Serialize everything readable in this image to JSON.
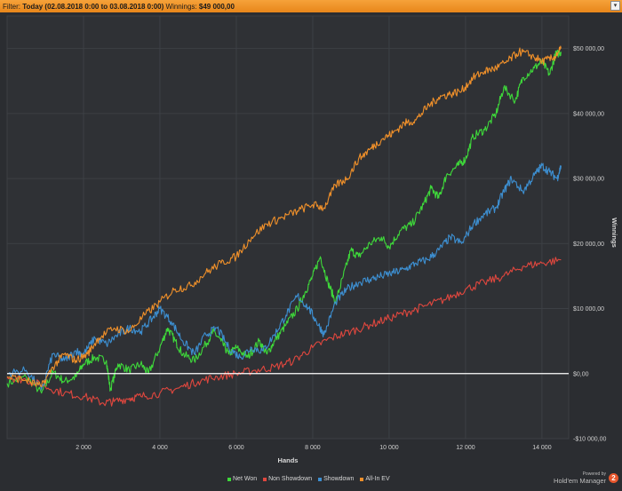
{
  "filter": {
    "label": "Filter:",
    "range": "Today (02.08.2018 0:00 to 03.08.2018 0:00)",
    "winnings_label": "Winnings:",
    "winnings_value": "$49 000,00"
  },
  "powered_by": {
    "line1": "Powered by",
    "line2": "Hold'em Manager",
    "logo": "2"
  },
  "chart_data": {
    "type": "line",
    "xlabel": "Hands",
    "ylabel": "Winnings",
    "xlim": [
      0,
      14700
    ],
    "ylim": [
      -10000,
      55000
    ],
    "xticks": [
      2000,
      4000,
      6000,
      8000,
      10000,
      12000,
      14000
    ],
    "xtick_labels": [
      "2 000",
      "4 000",
      "6 000",
      "8 000",
      "10 000",
      "12 000",
      "14 000"
    ],
    "yticks": [
      -10000,
      0,
      10000,
      20000,
      30000,
      40000,
      50000
    ],
    "ytick_labels": [
      "-$10 000,00",
      "$0,00",
      "$10 000,00",
      "$20 000,00",
      "$30 000,00",
      "$40 000,00",
      "$50 000,00"
    ],
    "zero_line": true,
    "grid": true,
    "legend_position": "bottom",
    "series": [
      {
        "name": "Net Won",
        "color": "#3ed83a",
        "x": [
          0,
          500,
          900,
          1200,
          1500,
          1800,
          2000,
          2300,
          2600,
          2700,
          2900,
          3200,
          3500,
          3700,
          4000,
          4200,
          4400,
          4600,
          4900,
          5200,
          5400,
          5600,
          5800,
          6000,
          6300,
          6600,
          6800,
          7000,
          7300,
          7600,
          7800,
          8000,
          8200,
          8400,
          8600,
          8800,
          9000,
          9200,
          9500,
          9800,
          10000,
          10300,
          10600,
          10900,
          11100,
          11300,
          11500,
          11800,
          12000,
          12200,
          12500,
          12800,
          13000,
          13300,
          13500,
          13800,
          14000,
          14200,
          14350,
          14500
        ],
        "y": [
          -1500,
          -500,
          -3000,
          200,
          -1200,
          -500,
          1500,
          2500,
          2000,
          -2500,
          1500,
          500,
          1500,
          0,
          4000,
          7000,
          5000,
          3000,
          2000,
          4500,
          6500,
          5000,
          3000,
          4000,
          2500,
          5000,
          3000,
          5000,
          7500,
          10000,
          12500,
          15000,
          18000,
          14000,
          11000,
          15000,
          19000,
          18000,
          20000,
          21000,
          19500,
          22000,
          23000,
          26000,
          28500,
          27000,
          30500,
          32000,
          33000,
          36500,
          37500,
          40000,
          44000,
          42000,
          45500,
          47000,
          48000,
          46000,
          49000,
          49500
        ]
      },
      {
        "name": "Non Showdown",
        "color": "#e0473e",
        "x": [
          0,
          500,
          1000,
          1500,
          2000,
          2500,
          2800,
          3200,
          3500,
          4000,
          4500,
          5000,
          5500,
          6000,
          6500,
          7000,
          7500,
          8000,
          8500,
          9000,
          9500,
          10000,
          10500,
          11000,
          11500,
          12000,
          12500,
          13000,
          13500,
          14000,
          14500
        ],
        "y": [
          -500,
          -1000,
          -2000,
          -3000,
          -3500,
          -4500,
          -4300,
          -3800,
          -3500,
          -3000,
          -2200,
          -1200,
          -500,
          0,
          500,
          1000,
          2000,
          4000,
          5500,
          6500,
          7500,
          8500,
          9500,
          10500,
          11500,
          13000,
          14000,
          15000,
          16500,
          17000,
          17500
        ]
      },
      {
        "name": "Showdown",
        "color": "#3d8fd1",
        "x": [
          0,
          500,
          900,
          1200,
          1500,
          1800,
          2000,
          2300,
          2600,
          2900,
          3200,
          3500,
          3800,
          4000,
          4300,
          4600,
          4900,
          5200,
          5500,
          5800,
          6100,
          6400,
          6700,
          7000,
          7300,
          7600,
          7900,
          8100,
          8300,
          8600,
          8900,
          9200,
          9500,
          9800,
          10100,
          10400,
          10700,
          11000,
          11300,
          11600,
          11900,
          12200,
          12500,
          12800,
          13000,
          13200,
          13500,
          13800,
          14000,
          14200,
          14400,
          14500
        ],
        "y": [
          0,
          500,
          -2500,
          3000,
          2000,
          3500,
          3000,
          5500,
          4500,
          6000,
          7000,
          6500,
          8500,
          10000,
          8000,
          5000,
          3000,
          6000,
          7000,
          4000,
          2500,
          4000,
          3500,
          6000,
          9000,
          12000,
          10000,
          8000,
          6000,
          11000,
          13000,
          14000,
          14500,
          15000,
          15500,
          16000,
          17000,
          17500,
          19000,
          21000,
          20000,
          23000,
          24500,
          25500,
          28000,
          30000,
          28000,
          30500,
          32000,
          31000,
          30000,
          32000
        ]
      },
      {
        "name": "All-In EV",
        "color": "#f0902a",
        "x": [
          0,
          500,
          900,
          1200,
          1500,
          1800,
          2100,
          2400,
          2800,
          3200,
          3600,
          4000,
          4400,
          4800,
          5200,
          5600,
          6000,
          6400,
          6800,
          7200,
          7600,
          8000,
          8300,
          8600,
          8900,
          9200,
          9500,
          9800,
          10100,
          10400,
          10700,
          11000,
          11300,
          11600,
          11900,
          12200,
          12500,
          12800,
          13100,
          13400,
          13700,
          14000,
          14300,
          14500
        ],
        "y": [
          -500,
          -1000,
          -2000,
          1000,
          3000,
          2000,
          3000,
          5500,
          7000,
          6500,
          9000,
          11000,
          13000,
          13500,
          15500,
          17000,
          18000,
          21000,
          23000,
          24000,
          25000,
          26000,
          25500,
          29000,
          30000,
          33000,
          34500,
          36000,
          37000,
          38500,
          39000,
          41000,
          42500,
          43000,
          43500,
          45500,
          46500,
          47000,
          48000,
          49500,
          49000,
          48000,
          48500,
          50000
        ]
      }
    ]
  }
}
